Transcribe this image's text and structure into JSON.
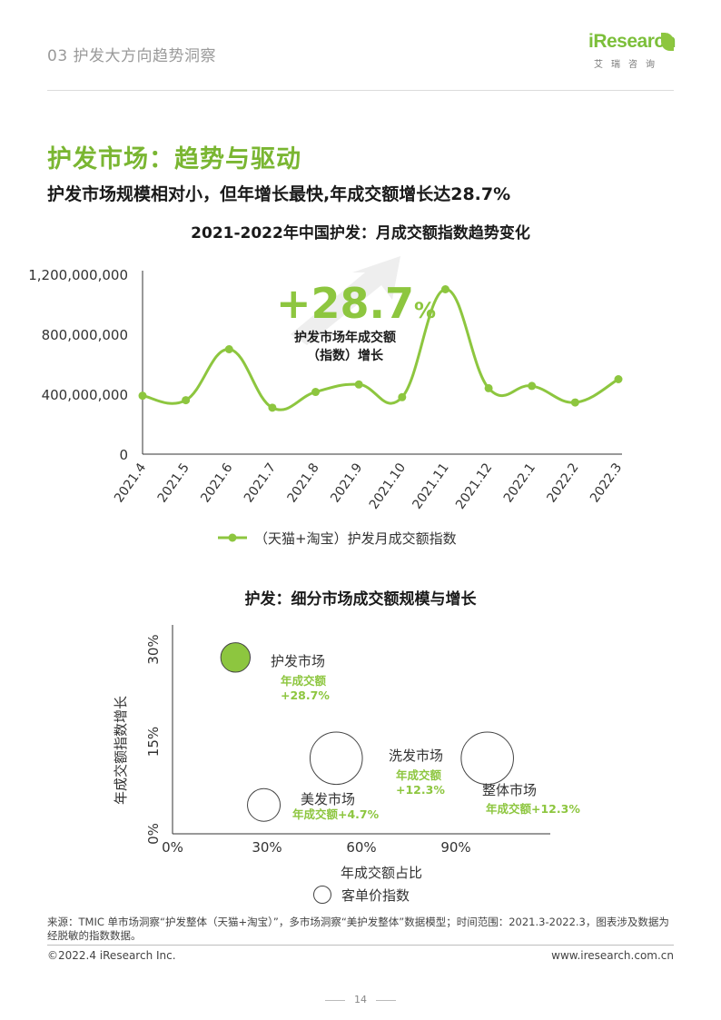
{
  "header": {
    "section_title": "03 护发大方向趋势洞察",
    "logo_text": "iResearch",
    "logo_sub": "艾瑞咨询"
  },
  "heading": "护发市场：趋势与驱动",
  "subheading": "护发市场规模相对小，但年增长最快,年成交额增长达28.7%",
  "colors": {
    "accent": "#8dc63f",
    "accent_dark": "#7ab632",
    "text": "#1a1a1a",
    "grey": "#9a9a9a"
  },
  "chart_data": [
    {
      "type": "line",
      "title": "2021-2022年中国护发：月成交额指数趋势变化",
      "categories": [
        "2021.4",
        "2021.5",
        "2021.6",
        "2021.7",
        "2021.8",
        "2021.9",
        "2021.10",
        "2021.11",
        "2021.12",
        "2022.1",
        "2022.2",
        "2022.3"
      ],
      "series": [
        {
          "name": "（天猫+淘宝）护发月成交额指数",
          "values": [
            390000000,
            360000000,
            700000000,
            310000000,
            415000000,
            465000000,
            380000000,
            1100000000,
            440000000,
            455000000,
            345000000,
            500000000
          ]
        }
      ],
      "ylim": [
        0,
        1200000000
      ],
      "yticks": [
        0,
        400000000,
        800000000,
        1200000000
      ],
      "ytick_labels": [
        "0",
        "400,000,000",
        "800,000,000",
        "1,200,000,000"
      ],
      "legend_position": "bottom",
      "annotation": {
        "big_value": "+28.7",
        "big_unit": "%",
        "label_line1": "护发市场年成交额",
        "label_line2": "（指数）增长"
      }
    },
    {
      "type": "scatter",
      "title": "护发：细分市场成交额规模与增长",
      "xlabel": "年成交额占比",
      "ylabel": "年成交额指数增长",
      "xlim": [
        0,
        1.2
      ],
      "ylim": [
        0,
        0.34
      ],
      "xtick_labels": [
        "0%",
        "30%",
        "60%",
        "90%"
      ],
      "xticks": [
        0,
        0.3,
        0.6,
        0.9
      ],
      "ytick_labels": [
        "0%",
        "15%",
        "30%"
      ],
      "yticks": [
        0,
        0.15,
        0.3
      ],
      "size_legend": "客单价指数",
      "points": [
        {
          "name": "护发市场",
          "label_value_line1": "年成交额",
          "label_value_line2": "+28.7%",
          "x": 0.2,
          "y": 0.287,
          "size": 0.9,
          "filled": true
        },
        {
          "name": "洗发市场",
          "label_value_line1": "年成交额",
          "label_value_line2": "+12.3%",
          "x": 0.52,
          "y": 0.123,
          "size": 1.6,
          "filled": false
        },
        {
          "name": "美发市场",
          "label_value_line": "年成交额+4.7%",
          "x": 0.29,
          "y": 0.047,
          "size": 1.0,
          "filled": false
        },
        {
          "name": "整体市场",
          "label_value_line": "年成交额+12.3%",
          "x": 1.0,
          "y": 0.123,
          "size": 1.6,
          "filled": false
        }
      ]
    }
  ],
  "footer": {
    "source": "来源：TMIC 单市场洞察“护发整体（天猫+淘宝）”，多市场洞察“美护发整体”数据模型；时间范围：2021.3-2022.3，图表涉及数据为经脱敏的指数数据。",
    "copyright": "©2022.4 iResearch Inc.",
    "website": "www.iresearch.com.cn",
    "page_number": "14"
  }
}
